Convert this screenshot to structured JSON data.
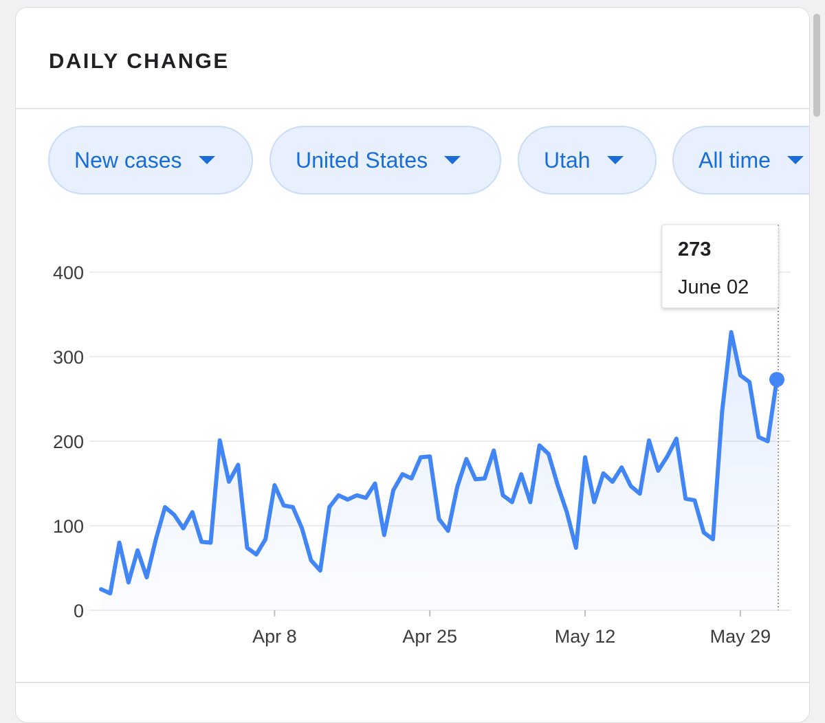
{
  "header": {
    "title": "DAILY CHANGE"
  },
  "filters": [
    "New cases",
    "United States",
    "Utah",
    "All time"
  ],
  "chart_data": {
    "type": "line",
    "categories": [
      null,
      null,
      null,
      null,
      null,
      null,
      null,
      null,
      null,
      null,
      null,
      null,
      null,
      null,
      null,
      null,
      null,
      null,
      null,
      "Apr 8",
      null,
      null,
      null,
      null,
      null,
      null,
      null,
      null,
      null,
      null,
      null,
      null,
      null,
      null,
      null,
      null,
      "Apr 25",
      null,
      null,
      null,
      null,
      null,
      null,
      null,
      null,
      null,
      null,
      null,
      null,
      null,
      null,
      null,
      null,
      "May 12",
      null,
      null,
      null,
      null,
      null,
      null,
      null,
      null,
      null,
      null,
      null,
      null,
      null,
      null,
      null,
      null,
      "May 29",
      null,
      null,
      null,
      null
    ],
    "values": [
      25,
      20,
      80,
      33,
      71,
      39,
      84,
      122,
      113,
      97,
      116,
      81,
      80,
      201,
      152,
      172,
      74,
      66,
      84,
      148,
      124,
      122,
      97,
      59,
      47,
      122,
      136,
      131,
      136,
      133,
      150,
      89,
      142,
      161,
      156,
      181,
      182,
      108,
      94,
      146,
      179,
      155,
      156,
      189,
      136,
      128,
      161,
      128,
      195,
      185,
      148,
      116,
      74,
      181,
      128,
      162,
      152,
      169,
      147,
      138,
      201,
      165,
      182,
      203,
      132,
      130,
      92,
      84,
      235,
      329,
      278,
      270,
      205,
      200,
      273
    ],
    "color": "#4285f4",
    "ylim": [
      0,
      400
    ],
    "yticks": [
      0,
      100,
      200,
      300,
      400
    ],
    "grid": true,
    "tooltip_label": "June 02"
  }
}
